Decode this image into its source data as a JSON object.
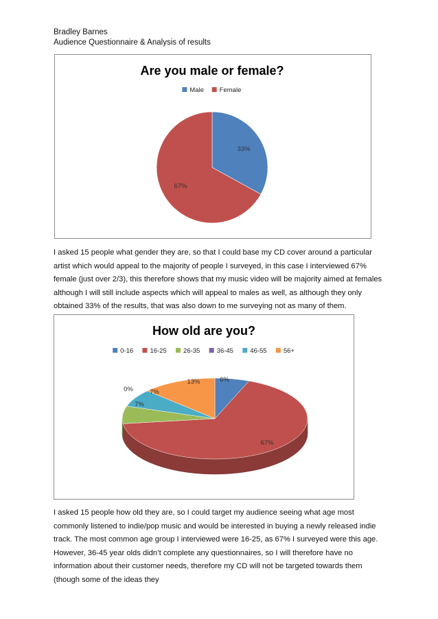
{
  "header": {
    "author": "Bradley Barnes",
    "subtitle": "Audience Questionnaire & Analysis of results"
  },
  "chart_data": [
    {
      "type": "pie",
      "title": "Are you male or female?",
      "legend_position": "top",
      "categories": [
        "Male",
        "Female"
      ],
      "values": [
        33,
        67
      ],
      "labels": [
        "33%",
        "67%"
      ],
      "colors": [
        "#4f81bd",
        "#c0504d"
      ]
    },
    {
      "type": "pie",
      "style": "3d",
      "title": "How old are you?",
      "legend_position": "top",
      "categories": [
        "0-16",
        "16-25",
        "26-35",
        "36-45",
        "46-55",
        "56+"
      ],
      "values": [
        6,
        67,
        7,
        0,
        7,
        13
      ],
      "labels": [
        "6%",
        "67%",
        "7%",
        "0%",
        "7%",
        "13%"
      ],
      "colors": [
        "#4f81bd",
        "#c0504d",
        "#9bbb59",
        "#8064a2",
        "#4bacc6",
        "#f79646"
      ]
    }
  ],
  "paragraphs": {
    "p1": "I asked 15 people what gender they are, so that I could base my CD cover around a particular artist which would appeal to the majority of people I surveyed, in this case I interviewed 67% female (just over 2/3), this therefore shows that my music video will be majority aimed at females although I will still include aspects which will appeal to males as well, as although they only obtained 33% of the results, that was also down to me surveying  not as many of them.",
    "p2": "I asked 15 people how old they are, so I could target my audience seeing what age most commonly listened to indie/pop music and would be interested in buying a newly released indie track. The most common age group I interviewed were 16-25, as 67% I surveyed were this age. However, 36-45 year olds didn’t complete any questionnaires, so I will therefore have no information about their customer needs, therefore my CD will not be targeted towards them (though some of the ideas they"
  }
}
